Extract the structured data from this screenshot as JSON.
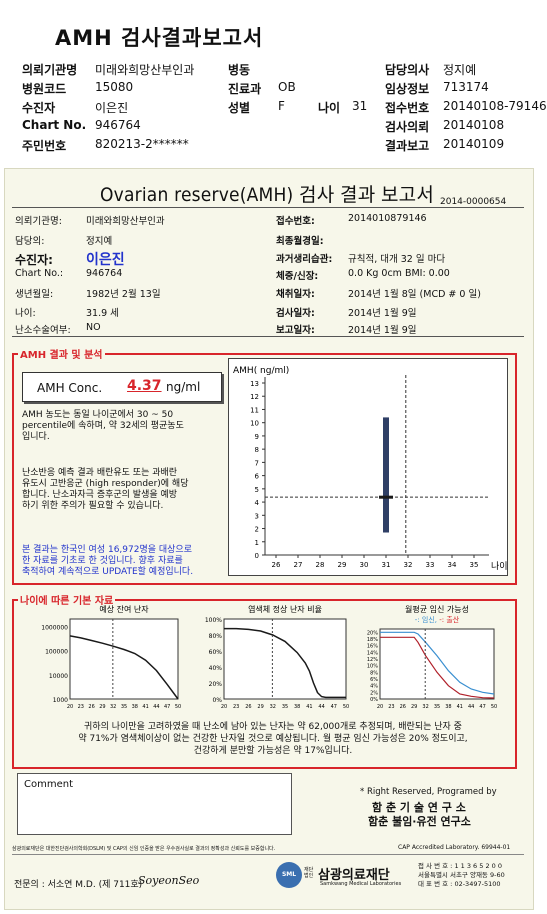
{
  "header": {
    "title": "AMH 검사결과보고서",
    "rows": [
      {
        "l1": "의뢰기관명",
        "v1": "미래와희망산부인과",
        "l2": "병동",
        "v2": "",
        "l3": "담당의사",
        "v3": "정지예"
      },
      {
        "l1": "병원코드",
        "v1": "15080",
        "l2": "진료과",
        "v2": "OB",
        "l3": "임상정보",
        "v3": "713174"
      },
      {
        "l1": "수진자",
        "v1": "이은진",
        "l2": "성별",
        "v2": "F",
        "age_label": "나이",
        "age": "31",
        "l3": "접수번호",
        "v3": "20140108-79146"
      },
      {
        "l1": "Chart No.",
        "v1": "946764",
        "l2": "",
        "v2": "",
        "l3": "검사의뢰",
        "v3": "20140108"
      },
      {
        "l1": "주민번호",
        "v1": "820213-2******",
        "l2": "",
        "v2": "",
        "l3": "결과보고",
        "v3": "20140109"
      }
    ]
  },
  "report": {
    "title": "Ovarian reserve(AMH) 검사 결과 보고서",
    "number": "2014-0000654",
    "left": [
      {
        "label": "의뢰기관명:",
        "value": "미래와희망산부인과"
      },
      {
        "label": "담당의:",
        "value": "정지예"
      },
      {
        "label": "수진자:",
        "value": "이은진"
      },
      {
        "label": "Chart No.:",
        "value": "946764"
      },
      {
        "label": "생년월일:",
        "value": "1982년 2월 13일"
      },
      {
        "label": "나이:",
        "value": "31.9 세"
      },
      {
        "label": "난소수술여부:",
        "value": "NO"
      }
    ],
    "right": [
      {
        "label": "접수번호:",
        "value": "2014010879146"
      },
      {
        "label": "최종월경일:",
        "value": ""
      },
      {
        "label": "과거생리습관:",
        "value": "규칙적, 대개   32 일 마다"
      },
      {
        "label": "체중/신장:",
        "value": "0.0 Kg          0cm    BMI:    0.00"
      },
      {
        "label": "채취일자:",
        "value": "2014년 1월 8일      (MCD #  0 일)"
      },
      {
        "label": "검사일자:",
        "value": "2014년 1월 9일"
      },
      {
        "label": "보고일자:",
        "value": "2014년 1월 9일"
      }
    ]
  },
  "amh_section": {
    "title": "AMH 결과 및 분석",
    "conc_label": "AMH Conc.",
    "conc_value": "4.37",
    "conc_unit": "ng/ml",
    "para1": [
      "AMH 농도는 동일 나이군에서   30 ~  50",
      "percentile에 속하며, 약  32세의 평균농도",
      "입니다."
    ],
    "para2": [
      "난소반응 예측 결과 배란유도 또는 과배란",
      "유도시 고반응군 (high responder)에 해당",
      "합니다. 난소과자극 증후군의 발생을 예방",
      "하기 위한 주의가 필요할 수 있습니다."
    ],
    "para3": [
      "본 결과는 한국인 여성 16,972명을 대상으로",
      "한 자료를 기초로 한 것입니다. 향후 자료를",
      "축적하여 계속적으로 UPDATE할 예정입니다."
    ]
  },
  "chart_data": [
    {
      "type": "bar",
      "ylabel": "AMH( ng/ml)",
      "xlabel": "나이",
      "xticks": [
        26,
        27,
        28,
        29,
        30,
        31,
        32,
        33,
        34,
        35
      ],
      "yticks": [
        0,
        1,
        2,
        3,
        4,
        5,
        6,
        7,
        8,
        9,
        10,
        11,
        12,
        13
      ],
      "ylim": [
        0,
        13
      ],
      "range_bar": {
        "x": 31,
        "low": 1.7,
        "high": 10.4
      },
      "marker": {
        "x": 31,
        "y": 4.37
      },
      "ref_lines": {
        "x": 31.9,
        "y": 4.37
      }
    },
    {
      "type": "line",
      "title": "예상 잔여 난자",
      "yticks": [
        "1000000",
        "100000",
        "10000",
        "1000"
      ],
      "xticks": [
        20,
        23,
        26,
        29,
        32,
        35,
        38,
        41,
        44,
        47,
        50
      ],
      "yscale": "log",
      "x": [
        20,
        23,
        26,
        29,
        32,
        35,
        38,
        41,
        44,
        47,
        50
      ],
      "y": [
        400000,
        330000,
        260000,
        200000,
        150000,
        110000,
        75000,
        40000,
        15000,
        4000,
        1000
      ]
    },
    {
      "type": "line",
      "title": "염색체 정상 난자 비율",
      "yticks": [
        "100%",
        "80%",
        "60%",
        "40%",
        "20%",
        "0%"
      ],
      "xticks": [
        20,
        23,
        26,
        29,
        32,
        35,
        38,
        41,
        44,
        47,
        50
      ],
      "x": [
        20,
        23,
        26,
        29,
        32,
        35,
        38,
        40,
        41,
        42,
        43,
        44,
        45,
        47,
        50
      ],
      "y": [
        88,
        88,
        87,
        85,
        80,
        72,
        58,
        45,
        35,
        20,
        8,
        3,
        2,
        2,
        2
      ]
    },
    {
      "type": "line",
      "title": "월평균 임신 가능성",
      "legend": [
        "임신",
        "출산"
      ],
      "yticks": [
        "20%",
        "18%",
        "16%",
        "14%",
        "12%",
        "10%",
        "8%",
        "6%",
        "4%",
        "2%",
        "0%"
      ],
      "xticks": [
        20,
        23,
        26,
        29,
        32,
        35,
        38,
        41,
        44,
        47,
        50
      ],
      "series": [
        {
          "name": "임신",
          "x": [
            20,
            26,
            29,
            30,
            32,
            35,
            38,
            41,
            44,
            47,
            50
          ],
          "y": [
            20,
            20,
            20,
            19.5,
            17,
            13,
            8.5,
            5,
            3,
            2,
            1.5
          ]
        },
        {
          "name": "출산",
          "x": [
            20,
            26,
            29,
            30,
            32,
            35,
            38,
            41,
            44,
            47,
            50
          ],
          "y": [
            18.5,
            18.5,
            18.5,
            17,
            13,
            8,
            4,
            1.5,
            0.8,
            0.4,
            0.3
          ]
        }
      ]
    }
  ],
  "age_section": {
    "title": "나이에 따른 기본 자료",
    "summary": [
      "귀하의 나이만을 고려하였을 때 난소에 남아 있는 난자는 약     62,000개로 추정되며, 배란되는 난자 중",
      "약  71%가 염색체이상이 없는 건강한 난자일 것으로 예상됩니다. 월 평균 임신 가능성은  20% 정도이고,",
      "건강하게 분만할 가능성은 약  17%입니다."
    ],
    "legend_caption": "-: 임신, -: 출산"
  },
  "comment_label": "Comment",
  "rights": {
    "line1": "* Right Reserved, Programed by",
    "line2": "함 춘 기 술 연 구 소",
    "line3": "함춘 불임·유전 연구소"
  },
  "footer": {
    "cert": "삼광의료재단은 대한진단검사의학회(DSLM) 및 CAP의 신임 인증을 받은 우수검사실로 결과의 정확성과 신뢰도를 보증합니다.",
    "cap": "CAP Accredited Laboratory. 69944-01",
    "doctor": "전문의 : 서소연 M.D. (제 711호)",
    "signature": "SoyeonSeo",
    "logo_text": "삼광의료재단",
    "logo_sub": "Samkwang Medical Laboratories",
    "logo_small": "재단 법인",
    "badge": "SML",
    "contact": [
      "접 사 번 호 : 1 1 3 6 5 2 0 0",
      "서울특별시 서초구 양재동 9-60",
      "대 표 번 호 : 02-3497-5100"
    ]
  }
}
